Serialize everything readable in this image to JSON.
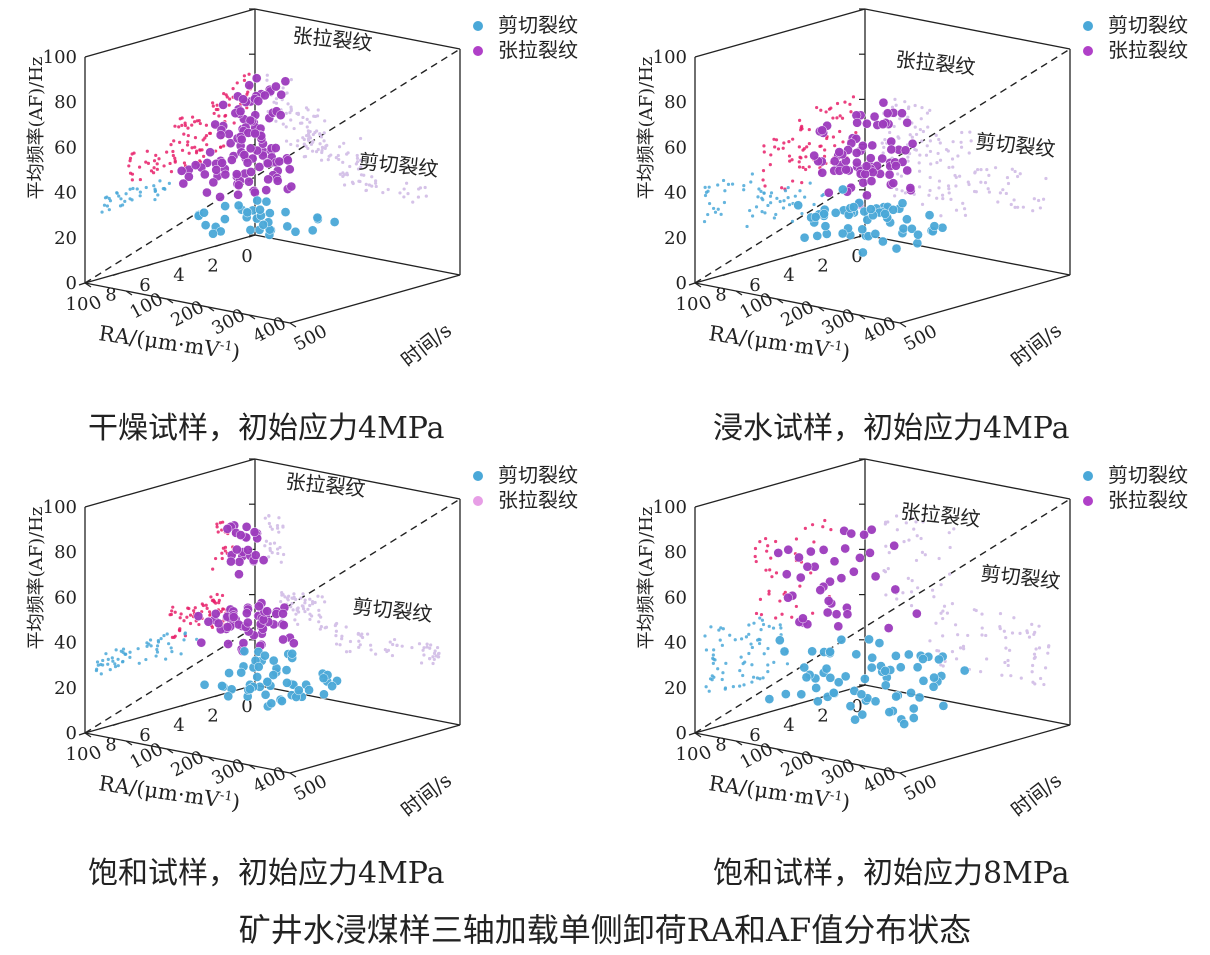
{
  "figure_title": "矿井水浸煤样三轴加载单侧卸荷RA和AF值分布状态",
  "chart_data": [
    {
      "type": "scatter",
      "caption": "干燥试样，初始应力4MPa",
      "axes": {
        "x": {
          "label": "RA/(μm·mV",
          "sup": "-1",
          "close": ")",
          "range": [
            0,
            10
          ],
          "ticks": [
            "0",
            "2",
            "4",
            "6",
            "8",
            "10"
          ]
        },
        "y": {
          "label": "时间/s",
          "range": [
            0,
            500
          ],
          "ticks": [
            "0",
            "100",
            "200",
            "300",
            "400",
            "500"
          ]
        },
        "z": {
          "label": "平均频率(AF)/Hz",
          "range": [
            0,
            100
          ],
          "ticks": [
            "0",
            "20",
            "40",
            "60",
            "80",
            "100"
          ]
        }
      },
      "legend": {
        "placement": "top-right",
        "entries": [
          {
            "label": "剪切裂纹",
            "color": "#4aa8d8"
          },
          {
            "label": "张拉裂纹",
            "color": "#b040c8"
          }
        ]
      },
      "annotations": [
        {
          "text": "张拉裂纹"
        },
        {
          "text": "剪切裂纹"
        }
      ],
      "colors": {
        "shear": "#4aa8d8",
        "tensile": "#9d3bbd",
        "proj_tensile": "#e8206a",
        "proj_faint": "#d5c2e8"
      },
      "series": [
        {
          "name": "张拉裂纹",
          "clusters": [
            {
              "ra": [
                0.2,
                2.5
              ],
              "time": [
                20,
                90
              ],
              "af": [
                50,
                72
              ],
              "n": 30
            },
            {
              "ra": [
                1.5,
                5.0
              ],
              "time": [
                60,
                170
              ],
              "af": [
                42,
                62
              ],
              "n": 40
            },
            {
              "ra": [
                3.0,
                7.5
              ],
              "time": [
                120,
                260
              ],
              "af": [
                38,
                52
              ],
              "n": 45
            }
          ]
        },
        {
          "name": "剪切裂纹",
          "clusters": [
            {
              "ra": [
                5.0,
                9.0
              ],
              "time": [
                200,
                430
              ],
              "af": [
                28,
                36
              ],
              "n": 35
            }
          ]
        }
      ]
    },
    {
      "type": "scatter",
      "caption": "浸水试样，初始应力4MPa",
      "axes": {
        "x": {
          "label": "RA/(μm·mV",
          "sup": "-1",
          "close": ")",
          "range": [
            0,
            10
          ],
          "ticks": [
            "0",
            "2",
            "4",
            "6",
            "8",
            "10"
          ]
        },
        "y": {
          "label": "时间/s",
          "range": [
            0,
            500
          ],
          "ticks": [
            "0",
            "100",
            "200",
            "300",
            "400",
            "500"
          ]
        },
        "z": {
          "label": "平均频率(AF)/Hz",
          "range": [
            0,
            100
          ],
          "ticks": [
            "0",
            "20",
            "40",
            "60",
            "80",
            "100"
          ]
        }
      },
      "legend": {
        "placement": "top-right",
        "entries": [
          {
            "label": "剪切裂纹",
            "color": "#4aa8d8"
          },
          {
            "label": "张拉裂纹",
            "color": "#b040c8"
          }
        ]
      },
      "annotations": [
        {
          "text": "张拉裂纹"
        },
        {
          "text": "剪切裂纹"
        }
      ],
      "colors": {
        "shear": "#4aa8d8",
        "tensile": "#9d3bbd",
        "proj_tensile": "#e8206a",
        "proj_faint": "#d5c2e8"
      },
      "series": [
        {
          "name": "张拉裂纹",
          "clusters": [
            {
              "ra": [
                0.5,
                4.0
              ],
              "time": [
                30,
                160
              ],
              "af": [
                35,
                65
              ],
              "n": 45
            },
            {
              "ra": [
                2.5,
                6.0
              ],
              "time": [
                120,
                260
              ],
              "af": [
                30,
                55
              ],
              "n": 35
            }
          ]
        },
        {
          "name": "剪切裂纹",
          "clusters": [
            {
              "ra": [
                2.0,
                7.0
              ],
              "time": [
                60,
                250
              ],
              "af": [
                15,
                30
              ],
              "n": 25
            },
            {
              "ra": [
                4.5,
                9.5
              ],
              "time": [
                250,
                450
              ],
              "af": [
                25,
                42
              ],
              "n": 35
            }
          ]
        }
      ]
    },
    {
      "type": "scatter",
      "caption": "饱和试样，初始应力4MPa",
      "axes": {
        "x": {
          "label": "RA/(μm·mV",
          "sup": "-1",
          "close": ")",
          "range": [
            0,
            10
          ],
          "ticks": [
            "0",
            "2",
            "4",
            "6",
            "8",
            "10"
          ]
        },
        "y": {
          "label": "时间/s",
          "range": [
            0,
            500
          ],
          "ticks": [
            "0",
            "100",
            "200",
            "300",
            "400",
            "500"
          ]
        },
        "z": {
          "label": "平均频率(AF)/Hz",
          "range": [
            0,
            100
          ],
          "ticks": [
            "0",
            "20",
            "40",
            "60",
            "80",
            "100"
          ]
        }
      },
      "legend": {
        "placement": "top-right",
        "entries": [
          {
            "label": "剪切裂纹",
            "color": "#4aa8d8"
          },
          {
            "label": "张拉裂纹",
            "color": "#e79ee6"
          }
        ]
      },
      "annotations": [
        {
          "text": "张拉裂纹"
        },
        {
          "text": "剪切裂纹"
        }
      ],
      "colors": {
        "shear": "#4aa8d8",
        "tensile": "#9d3bbd",
        "proj_tensile": "#e8206a",
        "proj_faint": "#d5c2e8"
      },
      "series": [
        {
          "name": "张拉裂纹",
          "clusters": [
            {
              "ra": [
                0.8,
                2.5
              ],
              "time": [
                20,
                70
              ],
              "af": [
                55,
                78
              ],
              "n": 25
            },
            {
              "ra": [
                1.5,
                5.0
              ],
              "time": [
                60,
                200
              ],
              "af": [
                30,
                45
              ],
              "n": 60
            }
          ]
        },
        {
          "name": "剪切裂纹",
          "clusters": [
            {
              "ra": [
                3.0,
                6.0
              ],
              "time": [
                180,
                280
              ],
              "af": [
                22,
                34
              ],
              "n": 15
            },
            {
              "ra": [
                5.5,
                9.5
              ],
              "time": [
                250,
                450
              ],
              "af": [
                24,
                33
              ],
              "n": 40
            }
          ]
        }
      ]
    },
    {
      "type": "scatter",
      "caption": "饱和试样，初始应力8MPa",
      "axes": {
        "x": {
          "label": "RA/(μm·mV",
          "sup": "-1",
          "close": ")",
          "range": [
            0,
            10
          ],
          "ticks": [
            "0",
            "2",
            "4",
            "6",
            "8",
            "10"
          ]
        },
        "y": {
          "label": "时间/s",
          "range": [
            0,
            500
          ],
          "ticks": [
            "0",
            "100",
            "200",
            "300",
            "400",
            "500"
          ]
        },
        "z": {
          "label": "平均频率(AF)/Hz",
          "range": [
            0,
            100
          ],
          "ticks": [
            "0",
            "20",
            "40",
            "60",
            "80",
            "100"
          ]
        }
      },
      "legend": {
        "placement": "top-right",
        "entries": [
          {
            "label": "剪切裂纹",
            "color": "#4aa8d8"
          },
          {
            "label": "张拉裂纹",
            "color": "#b040c8"
          }
        ]
      },
      "annotations": [
        {
          "text": "张拉裂纹"
        },
        {
          "text": "剪切裂纹"
        }
      ],
      "colors": {
        "shear": "#4aa8d8",
        "tensile": "#9d3bbd",
        "proj_tensile": "#e8206a",
        "proj_faint": "#d5c2e8"
      },
      "series": [
        {
          "name": "张拉裂纹",
          "clusters": [
            {
              "ra": [
                2.0,
                6.5
              ],
              "time": [
                40,
                220
              ],
              "af": [
                38,
                78
              ],
              "n": 40
            }
          ]
        },
        {
          "name": "剪切裂纹",
          "clusters": [
            {
              "ra": [
                4.5,
                9.5
              ],
              "time": [
                150,
                450
              ],
              "af": [
                15,
                45
              ],
              "n": 70
            }
          ]
        }
      ]
    }
  ]
}
